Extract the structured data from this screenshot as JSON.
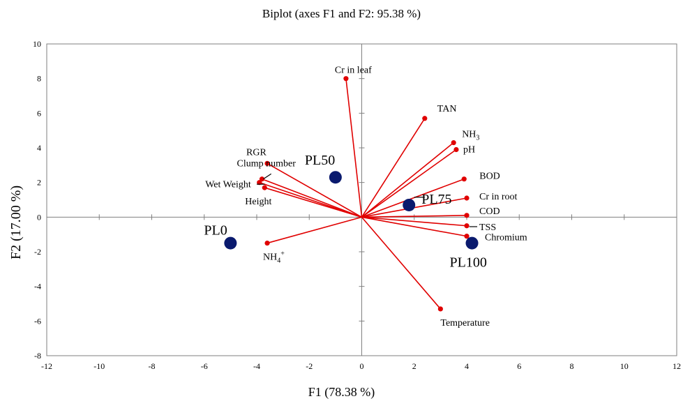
{
  "chart_data": {
    "type": "scatter",
    "subtype": "biplot",
    "title": "Biplot (axes F1 and F2: 95.38 %)",
    "xlabel": "F1 (78.38 %)",
    "ylabel": "F2 (17.00 %)",
    "xlim": [
      -12,
      12
    ],
    "ylim": [
      -8,
      10
    ],
    "xticks": [
      -12,
      -10,
      -8,
      -6,
      -4,
      -2,
      0,
      2,
      4,
      6,
      8,
      10,
      12
    ],
    "yticks": [
      -8,
      -6,
      -4,
      -2,
      0,
      2,
      4,
      6,
      8,
      10
    ],
    "grid": false,
    "variable_color": "#e00000",
    "observation_color": "#0a1a6e",
    "variables": [
      {
        "name": "Cr in leaf",
        "x": -0.6,
        "y": 8.0
      },
      {
        "name": "TAN",
        "x": 2.4,
        "y": 5.7
      },
      {
        "name": "NH",
        "sub": "3",
        "x": 3.5,
        "y": 4.3
      },
      {
        "name": "pH",
        "x": 3.6,
        "y": 3.9
      },
      {
        "name": "RGR",
        "x": -3.6,
        "y": 3.1
      },
      {
        "name": "Clump number",
        "x": -3.8,
        "y": 2.2
      },
      {
        "name": "Wet Weight",
        "x": -3.9,
        "y": 2.0
      },
      {
        "name": "Height",
        "x": -3.7,
        "y": 1.7
      },
      {
        "name": "BOD",
        "x": 3.9,
        "y": 2.2
      },
      {
        "name": "Cr in root",
        "x": 4.0,
        "y": 1.1
      },
      {
        "name": "COD",
        "x": 4.0,
        "y": 0.1
      },
      {
        "name": "TSS",
        "x": 4.0,
        "y": -0.5
      },
      {
        "name": "Chromium",
        "x": 4.0,
        "y": -1.1
      },
      {
        "name": "NH",
        "sub": "4",
        "sup": "+",
        "x": -3.6,
        "y": -1.5
      },
      {
        "name": "Temperature",
        "x": 3.0,
        "y": -5.3
      }
    ],
    "observations": [
      {
        "name": "PL0",
        "x": -5.0,
        "y": -1.5
      },
      {
        "name": "PL50",
        "x": -1.0,
        "y": 2.3
      },
      {
        "name": "PL75",
        "x": 1.8,
        "y": 0.7
      },
      {
        "name": "PL100",
        "x": 4.2,
        "y": -1.5
      }
    ]
  }
}
